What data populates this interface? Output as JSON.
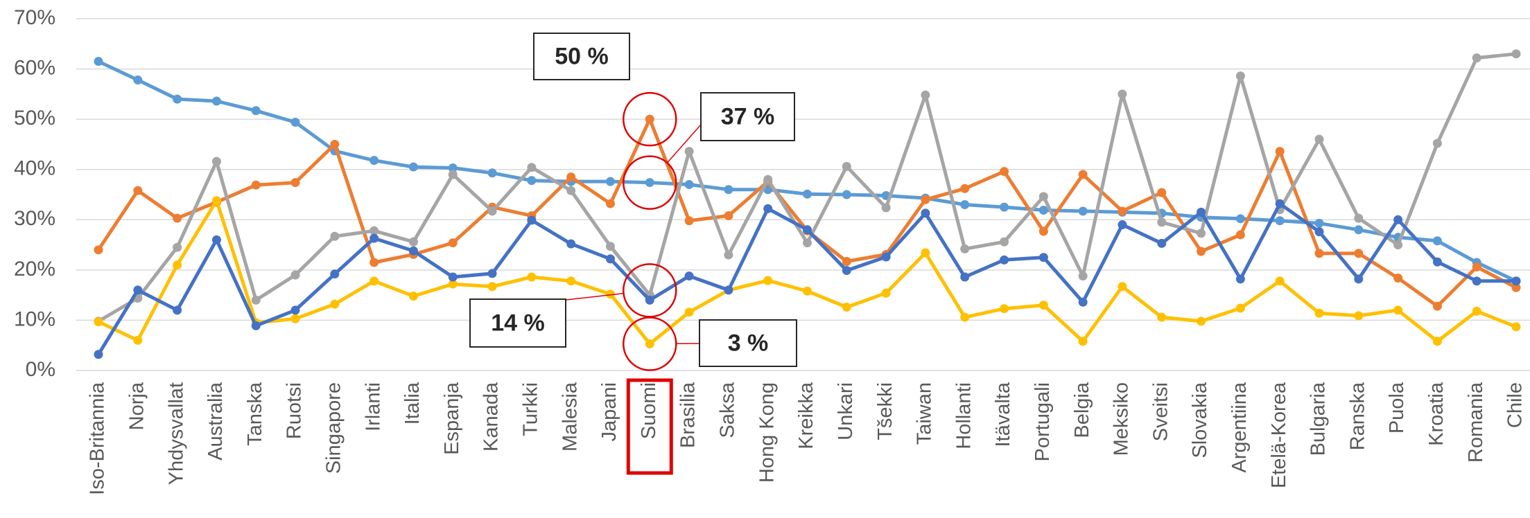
{
  "chart_data": {
    "type": "line",
    "categories": [
      "Iso-Britannia",
      "Norja",
      "Yhdysvallat",
      "Australia",
      "Tanska",
      "Ruotsi",
      "Singapore",
      "Irlanti",
      "Italia",
      "Espanja",
      "Kanada",
      "Turkki",
      "Malesia",
      "Japani",
      "Suomi",
      "Brasilia",
      "Saksa",
      "Hong Kong",
      "Kreikka",
      "Unkari",
      "Tšekki",
      "Taiwan",
      "Hollanti",
      "Itävalta",
      "Portugali",
      "Belgia",
      "Meksiko",
      "Sveitsi",
      "Slovakia",
      "Argentiina",
      "Etelä-Korea",
      "Bulgaria",
      "Ranska",
      "Puola",
      "Kroatia",
      "Romania",
      "Chile"
    ],
    "series": [
      {
        "color": "#5b9bd5",
        "values": [
          61.5,
          57.8,
          54,
          53.6,
          51.7,
          49.4,
          43.7,
          41.8,
          40.5,
          40.3,
          39.3,
          37.8,
          37.6,
          37.6,
          37.4,
          37,
          36,
          36,
          35.1,
          35,
          34.8,
          34.3,
          33,
          32.5,
          31.9,
          31.7,
          31.5,
          31.3,
          30.5,
          30.2,
          29.8,
          29.3,
          28,
          26.5,
          25.8,
          21.5,
          17.8
        ]
      },
      {
        "color": "#ed7d31",
        "values": [
          24,
          35.8,
          30.3,
          33.5,
          36.9,
          37.4,
          45,
          21.5,
          23.1,
          25.4,
          32.5,
          30.8,
          38.5,
          33.2,
          50,
          29.8,
          30.8,
          37.6,
          27.8,
          21.7,
          23.1,
          34,
          36.2,
          39.6,
          27.7,
          39,
          31.7,
          35.4,
          23.7,
          27,
          43.6,
          23.3,
          23.3,
          18.4,
          12.8,
          20.6,
          16.5
        ]
      },
      {
        "color": "#a5a5a5",
        "values": [
          9.8,
          14.4,
          24.5,
          41.6,
          14,
          19,
          26.7,
          27.8,
          25.6,
          39,
          31.7,
          40.4,
          35.8,
          24.7,
          15,
          43.6,
          23,
          38,
          25.4,
          40.6,
          32.4,
          54.8,
          24.2,
          25.6,
          34.6,
          18.8,
          55,
          29.5,
          27.3,
          58.6,
          32,
          46,
          30.3,
          25,
          45.2,
          62.2,
          63
        ]
      },
      {
        "color": "#ffc000",
        "values": [
          9.7,
          6,
          21,
          33.8,
          9.5,
          10.3,
          13.2,
          17.8,
          14.8,
          17.2,
          16.7,
          18.6,
          17.8,
          15.2,
          5.3,
          11.6,
          16,
          17.9,
          15.8,
          12.6,
          15.4,
          23.4,
          10.6,
          12.3,
          13,
          5.8,
          16.7,
          10.6,
          9.8,
          12.4,
          17.8,
          11.4,
          10.9,
          12,
          5.8,
          11.8,
          8.7
        ]
      },
      {
        "color": "#4472c4",
        "values": [
          3.2,
          16,
          12,
          26,
          8.9,
          12,
          19.2,
          26.3,
          23.8,
          18.6,
          19.3,
          29.9,
          25.2,
          22.2,
          14,
          18.8,
          16,
          32.2,
          28,
          19.9,
          22.6,
          31.3,
          18.6,
          22,
          22.5,
          13.6,
          29,
          25.3,
          31.5,
          18.2,
          33.2,
          27.6,
          18.2,
          30,
          21.6,
          17.8,
          17.8
        ]
      }
    ],
    "ylim": [
      0,
      70
    ],
    "yticks": [
      {
        "value": 0,
        "label": "0%"
      },
      {
        "value": 10,
        "label": "10%"
      },
      {
        "value": 20,
        "label": "20%"
      },
      {
        "value": 30,
        "label": "30%"
      },
      {
        "value": 40,
        "label": "40%"
      },
      {
        "value": 50,
        "label": "50%"
      },
      {
        "value": 60,
        "label": "60%"
      },
      {
        "value": 70,
        "label": "70%"
      }
    ],
    "grid": true,
    "annotations": [
      "50 %",
      "37 %",
      "14 %",
      "3 %"
    ]
  }
}
